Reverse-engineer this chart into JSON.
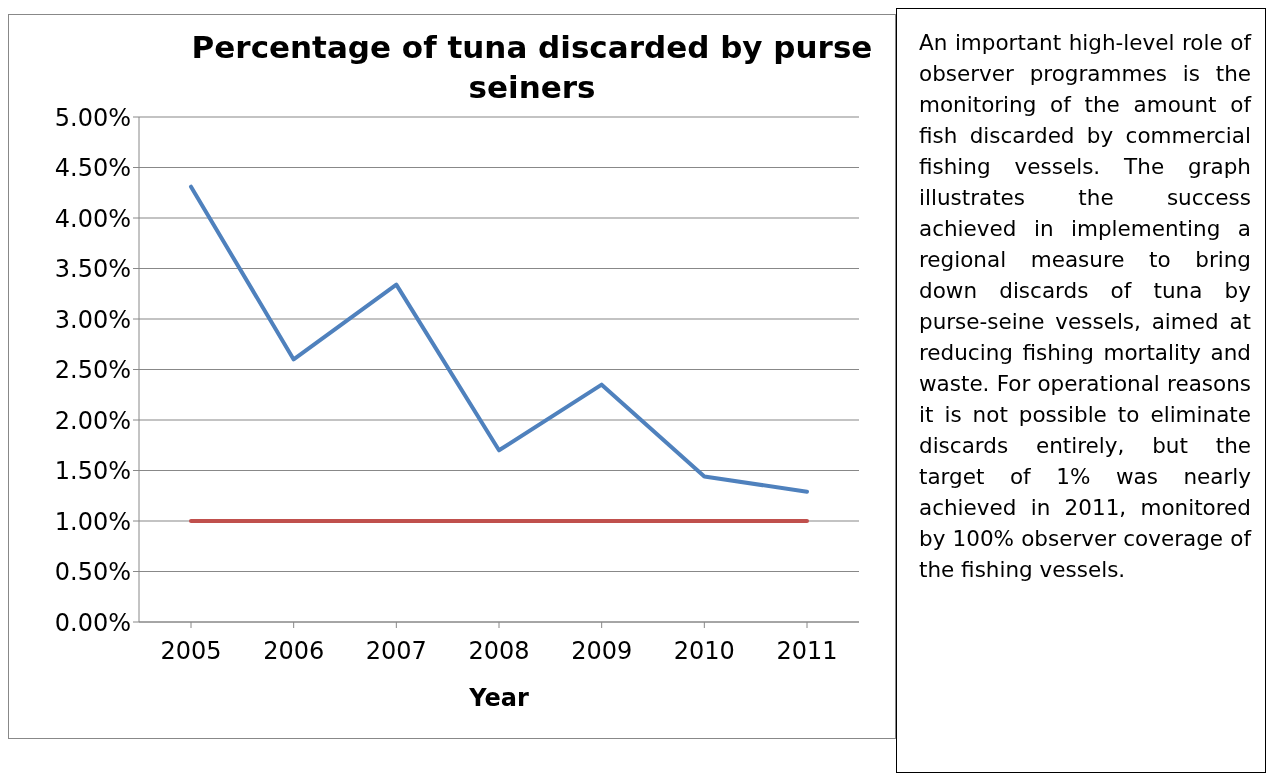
{
  "chart_data": {
    "type": "line",
    "title": "Percentage of tuna discarded by purse seiners",
    "xlabel": "Year",
    "categories": [
      "2005",
      "2006",
      "2007",
      "2008",
      "2009",
      "2010",
      "2011"
    ],
    "series": [
      {
        "color": "#4f81bd",
        "values": [
          4.31,
          2.6,
          3.34,
          1.7,
          2.35,
          1.44,
          1.29
        ]
      },
      {
        "color": "#c0504d",
        "values": [
          1,
          1,
          1,
          1,
          1,
          1,
          1
        ]
      }
    ],
    "ylim": [
      0,
      5
    ],
    "yticks": [
      {
        "value": 0,
        "label": "0.00%"
      },
      {
        "value": 0.5,
        "label": "0.50%"
      },
      {
        "value": 1,
        "label": "1.00%"
      },
      {
        "value": 1.5,
        "label": "1.50%"
      },
      {
        "value": 2,
        "label": "2.00%"
      },
      {
        "value": 2.5,
        "label": "2.50%"
      },
      {
        "value": 3,
        "label": "3.00%"
      },
      {
        "value": 3.5,
        "label": "3.50%"
      },
      {
        "value": 4,
        "label": "4.00%"
      },
      {
        "value": 4.5,
        "label": "4.50%"
      },
      {
        "value": 5,
        "label": "5.00%"
      }
    ],
    "grid": "y",
    "marker": "none",
    "annotations": [
      "An important high-level role of observer programmes is the monitoring of the amount of fish discarded by commercial fishing vessels. The graph illustrates the success achieved in implementing a regional measure to bring down discards of tuna by purse-seine vessels, aimed at reducing fishing mortality and waste. For operational reasons it is not possible to eliminate discards entirely, but the target of 1% was nearly achieved in 2011, monitored by 100% observer coverage of the fishing vessels."
    ]
  }
}
